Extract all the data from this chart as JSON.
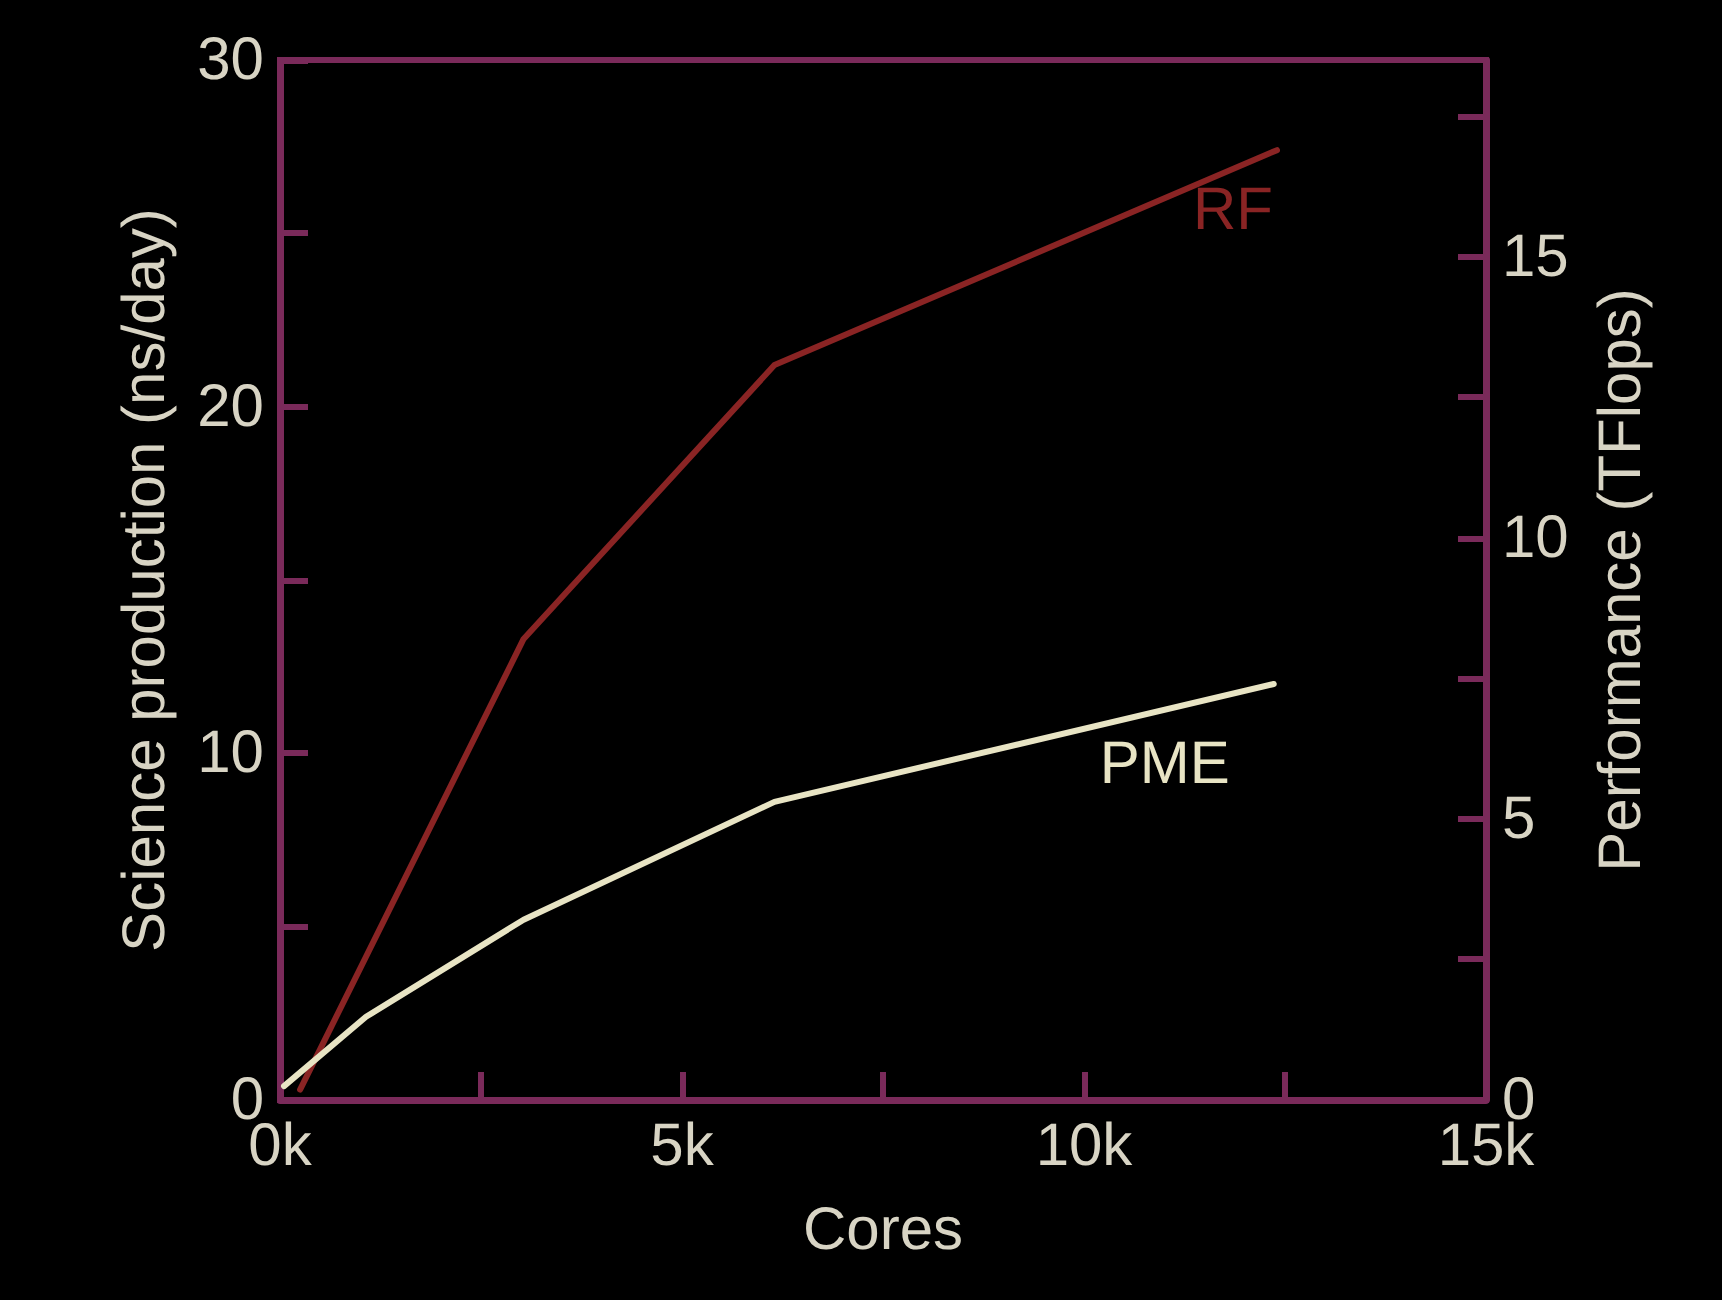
{
  "chart_data": {
    "type": "line",
    "xlabel": "Cores",
    "ylabel": "Science production (ns/day)",
    "y2label": "Performance (TFlops)",
    "xlim": [
      0,
      15000
    ],
    "xticks": [
      {
        "value": 0,
        "label": "0k"
      },
      {
        "value": 2500,
        "label": null
      },
      {
        "value": 5000,
        "label": "5k"
      },
      {
        "value": 7500,
        "label": null
      },
      {
        "value": 10000,
        "label": "10k"
      },
      {
        "value": 12500,
        "label": null
      },
      {
        "value": 15000,
        "label": "15k"
      }
    ],
    "ylim": [
      0,
      30
    ],
    "yticks": [
      0,
      {
        "value": 5,
        "label": null
      },
      10,
      {
        "value": 15,
        "label": null
      },
      20,
      {
        "value": 25,
        "label": null
      },
      30
    ],
    "y2lim": [
      0,
      18.5
    ],
    "y2ticks": [
      0,
      {
        "value": 2.5,
        "label": null
      },
      5,
      {
        "value": 7.5,
        "label": null
      },
      10,
      {
        "value": 12.5,
        "label": null
      },
      15,
      {
        "value": 17.5,
        "label": null
      }
    ],
    "grid": false,
    "legend": false,
    "marker": "none",
    "line_style": "solid",
    "series": [
      {
        "name": "RF",
        "color": "#8a2424",
        "x": [
          250,
          3030,
          6150,
          12400
        ],
        "values": [
          0.3,
          13.3,
          21.2,
          27.4
        ]
      },
      {
        "name": "PME",
        "color": "#e8e4c4",
        "x": [
          50,
          1070,
          3030,
          6150,
          12360
        ],
        "values": [
          0.4,
          2.4,
          5.2,
          8.6,
          12.0
        ]
      }
    ]
  }
}
